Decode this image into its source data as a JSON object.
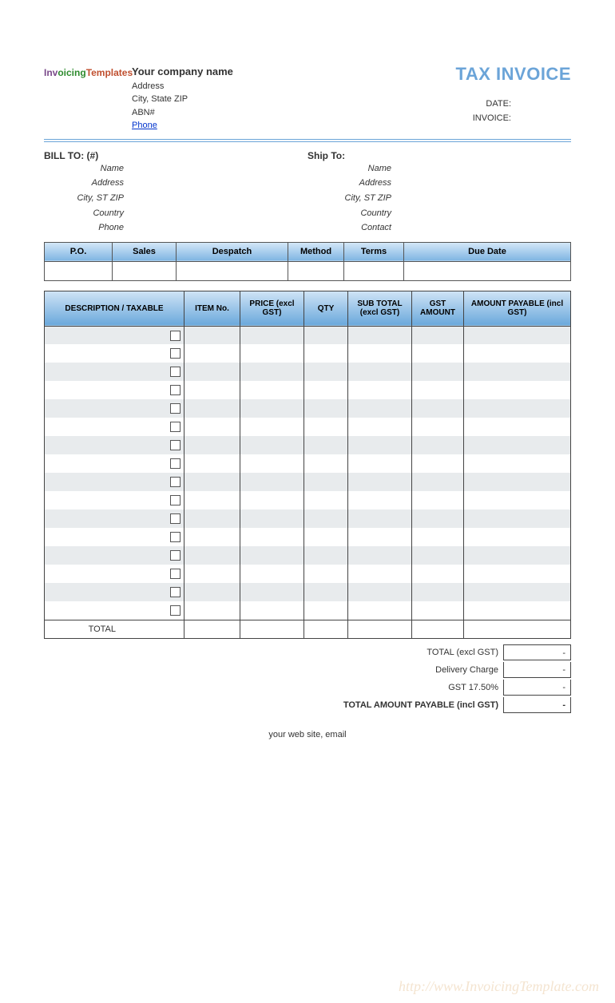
{
  "logo": {
    "part1": "Inv",
    "part2": "oicing",
    "part3": "Templates"
  },
  "company": {
    "name": "Your company name",
    "address": "Address",
    "city": "City, State ZIP",
    "abn": "ABN#",
    "phone": "Phone"
  },
  "invoice_title": "TAX INVOICE",
  "meta": {
    "date_label": "DATE:",
    "invoice_label": "INVOICE:"
  },
  "bill_to": {
    "title": "BILL TO:  (#)",
    "lines": [
      "Name",
      "Address",
      "City, ST ZIP",
      "Country",
      "Phone"
    ]
  },
  "ship_to": {
    "title": "Ship To:",
    "lines": [
      "Name",
      "Address",
      "City, ST ZIP",
      "Country",
      "Contact"
    ]
  },
  "order_table": {
    "columns": [
      "P.O.",
      "Sales",
      "Despatch",
      "Method",
      "Terms",
      "Due Date"
    ],
    "col_widths": [
      "85px",
      "80px",
      "140px",
      "70px",
      "75px",
      "auto"
    ],
    "rows": [
      [
        "",
        "",
        "",
        "",
        "",
        ""
      ]
    ]
  },
  "items_table": {
    "columns": [
      "DESCRIPTION / TAXABLE",
      "ITEM No.",
      "PRICE (excl GST)",
      "QTY",
      "SUB TOTAL (excl GST)",
      "GST AMOUNT",
      "AMOUNT PAYABLE (incl GST)"
    ],
    "col_widths": [
      "175px",
      "70px",
      "80px",
      "55px",
      "80px",
      "65px",
      "auto"
    ],
    "row_count": 16,
    "total_label": "TOTAL",
    "header_gradient": [
      "#d0e4f6",
      "#6aa8db"
    ],
    "stripe_colors": {
      "even": "#e8ebed",
      "odd": "#ffffff"
    }
  },
  "summary": [
    {
      "label": "TOTAL (excl GST)",
      "value": "-",
      "bold": false
    },
    {
      "label": "Delivery Charge",
      "value": "-",
      "bold": false
    },
    {
      "label": "GST 17.50%",
      "value": "-",
      "bold": false
    },
    {
      "label": "TOTAL AMOUNT PAYABLE (incl GST)",
      "value": "-",
      "bold": true
    }
  ],
  "footer": "your web site, email",
  "watermark": "http://www.InvoicingTemplate.com",
  "colors": {
    "accent": "#6ba4d8",
    "border": "#444444",
    "link": "#0033cc"
  }
}
